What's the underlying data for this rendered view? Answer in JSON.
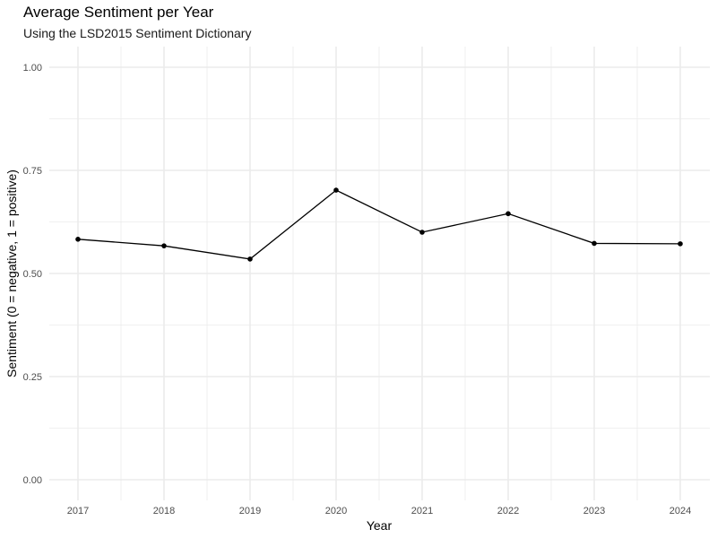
{
  "chart_data": {
    "type": "line",
    "title": "Average Sentiment per Year",
    "subtitle": "Using the LSD2015 Sentiment Dictionary",
    "xlabel": "Year",
    "ylabel": "Sentiment (0 = negative, 1 = positive)",
    "x": [
      2017,
      2018,
      2019,
      2020,
      2021,
      2022,
      2023,
      2024
    ],
    "series": [
      {
        "values": [
          0.583,
          0.567,
          0.535,
          0.702,
          0.6,
          0.645,
          0.573,
          0.572
        ]
      }
    ],
    "ylim": [
      0,
      1
    ],
    "yticks": [
      "0.00",
      "0.25",
      "0.50",
      "0.75",
      "1.00"
    ],
    "xticks": [
      "2017",
      "2018",
      "2019",
      "2020",
      "2021",
      "2022",
      "2023",
      "2024"
    ],
    "grid": true,
    "legend": "none",
    "line_color": "#000000",
    "grid_color": "#ebebeb"
  }
}
